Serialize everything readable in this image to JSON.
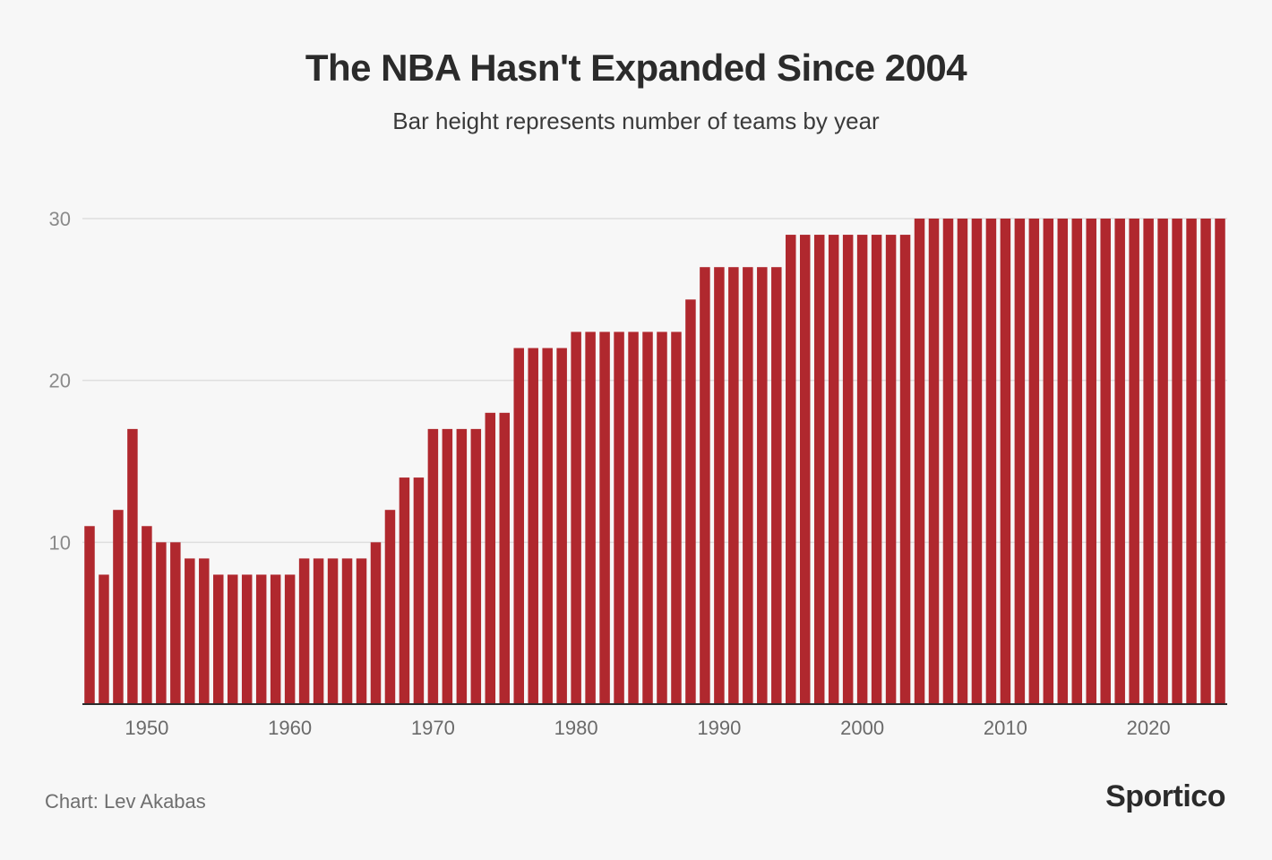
{
  "chart_data": {
    "type": "bar",
    "title": "The NBA Hasn't Expanded Since 2004",
    "subtitle": "Bar height represents number of teams by year",
    "xlabel": "",
    "ylabel": "",
    "ylim": [
      0,
      30
    ],
    "yticks": [
      10,
      20,
      30
    ],
    "xticks": [
      1950,
      1960,
      1970,
      1980,
      1990,
      2000,
      2010,
      2020
    ],
    "grid": true,
    "bar_color": "#b0282e",
    "categories": [
      1946,
      1947,
      1948,
      1949,
      1950,
      1951,
      1952,
      1953,
      1954,
      1955,
      1956,
      1957,
      1958,
      1959,
      1960,
      1961,
      1962,
      1963,
      1964,
      1965,
      1966,
      1967,
      1968,
      1969,
      1970,
      1971,
      1972,
      1973,
      1974,
      1975,
      1976,
      1977,
      1978,
      1979,
      1980,
      1981,
      1982,
      1983,
      1984,
      1985,
      1986,
      1987,
      1988,
      1989,
      1990,
      1991,
      1992,
      1993,
      1994,
      1995,
      1996,
      1997,
      1998,
      1999,
      2000,
      2001,
      2002,
      2003,
      2004,
      2005,
      2006,
      2007,
      2008,
      2009,
      2010,
      2011,
      2012,
      2013,
      2014,
      2015,
      2016,
      2017,
      2018,
      2019,
      2020,
      2021,
      2022,
      2023,
      2024,
      2025
    ],
    "values": [
      11,
      8,
      12,
      17,
      11,
      10,
      10,
      9,
      9,
      8,
      8,
      8,
      8,
      8,
      8,
      9,
      9,
      9,
      9,
      9,
      10,
      12,
      14,
      14,
      17,
      17,
      17,
      17,
      18,
      18,
      22,
      22,
      22,
      22,
      23,
      23,
      23,
      23,
      23,
      23,
      23,
      23,
      25,
      27,
      27,
      27,
      27,
      27,
      27,
      29,
      29,
      29,
      29,
      29,
      29,
      29,
      29,
      29,
      30,
      30,
      30,
      30,
      30,
      30,
      30,
      30,
      30,
      30,
      30,
      30,
      30,
      30,
      30,
      30,
      30,
      30,
      30,
      30,
      30,
      30
    ]
  },
  "footer": {
    "credit": "Chart: Lev Akabas",
    "logo": "Sportico"
  }
}
